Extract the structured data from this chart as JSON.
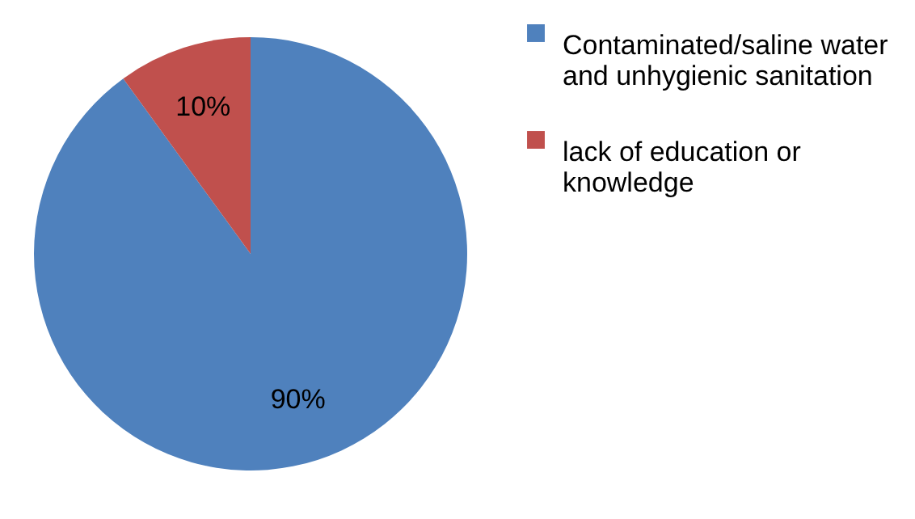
{
  "chart_data": {
    "type": "pie",
    "categories": [
      "Contaminated/saline water and unhygienic sanitation",
      "lack of education or knowledge"
    ],
    "values": [
      90,
      10
    ],
    "colors": [
      "#4f81bd",
      "#c0504d"
    ],
    "value_labels": [
      "90%",
      "10%"
    ],
    "legend": "right"
  }
}
